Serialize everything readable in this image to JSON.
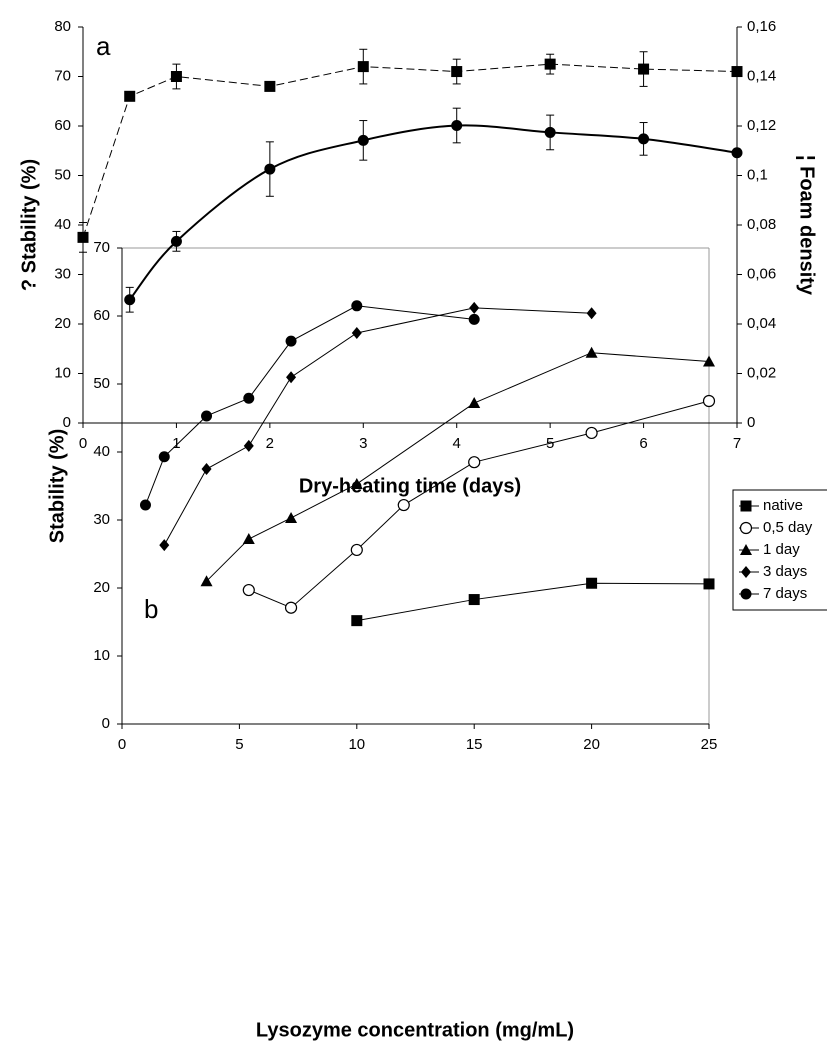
{
  "chart_data": [
    {
      "type": "line",
      "annotation": "a",
      "xlabel": "Dry-heating time (days)",
      "ylabel": "? Stability (%)",
      "y2label": "¦ Foam density",
      "x": [
        0,
        0.5,
        1,
        2,
        3,
        4,
        5,
        6,
        7
      ],
      "xlim": [
        0,
        7
      ],
      "xticks": [
        0,
        1,
        2,
        3,
        4,
        5,
        6,
        7
      ],
      "ylim": [
        0,
        80
      ],
      "yticks": [
        0,
        10,
        20,
        30,
        40,
        50,
        60,
        70,
        80
      ],
      "y2lim": [
        0,
        0.16
      ],
      "y2ticks": [
        0,
        {
          "value": 0.02,
          "label": "0,02"
        },
        {
          "value": 0.04,
          "label": "0,04"
        },
        {
          "value": 0.06,
          "label": "0,06"
        },
        {
          "value": 0.08,
          "label": "0,08"
        },
        {
          "value": 0.1,
          "label": "0,1"
        },
        {
          "value": 0.12,
          "label": "0,12"
        },
        {
          "value": 0.14,
          "label": "0,14"
        },
        {
          "value": 0.16,
          "label": "0,16"
        }
      ],
      "series": [
        {
          "color": "#000000",
          "marker": "square",
          "dash": true,
          "axis": "y2",
          "values": [
            0.075,
            0.132,
            0.14,
            0.136,
            0.144,
            0.142,
            0.145,
            0.143,
            0.142
          ],
          "errors": [
            0.006,
            null,
            0.005,
            null,
            0.007,
            0.005,
            0.004,
            0.007,
            null
          ]
        },
        {
          "color": "#000000",
          "marker": "circle",
          "smooth": true,
          "values": [
            null,
            24.9,
            36.7,
            51.3,
            57.1,
            60.1,
            58.7,
            57.4,
            54.6
          ],
          "errors": [
            null,
            2.5,
            2,
            5.5,
            4,
            3.5,
            3.5,
            3.3,
            null
          ]
        }
      ]
    },
    {
      "type": "line",
      "annotation": "b",
      "xlabel": "Lysozyme concentration (mg/mL)",
      "ylabel": "Stability (%)",
      "xlim": [
        0,
        25
      ],
      "xticks": [
        0,
        5,
        10,
        15,
        20,
        25
      ],
      "ylim": [
        0,
        70
      ],
      "yticks": [
        0,
        10,
        20,
        30,
        40,
        50,
        60,
        70
      ],
      "legend": "right",
      "series": [
        {
          "name": "native",
          "color": "#000000",
          "marker": "square",
          "x": [
            10,
            15,
            20,
            25
          ],
          "values": [
            15.2,
            18.3,
            20.7,
            20.6
          ]
        },
        {
          "name": "0,5 day",
          "color": "#000000",
          "marker": "circle-open",
          "x": [
            5.4,
            7.2,
            10,
            12,
            15,
            20,
            25
          ],
          "values": [
            19.7,
            17.1,
            25.6,
            32.2,
            38.5,
            42.8,
            47.5
          ]
        },
        {
          "name": "1 day",
          "color": "#000000",
          "marker": "triangle",
          "x": [
            3.6,
            5.4,
            7.2,
            10,
            15,
            20,
            25
          ],
          "values": [
            21,
            27.2,
            30.3,
            35.3,
            47.2,
            54.6,
            53.3
          ]
        },
        {
          "name": "3 days",
          "color": "#000000",
          "marker": "diamond",
          "x": [
            1.8,
            3.6,
            5.4,
            7.2,
            10,
            15,
            20
          ],
          "values": [
            26.3,
            37.5,
            40.9,
            51,
            57.5,
            61.2,
            60.4
          ]
        },
        {
          "name": "7 days",
          "color": "#000000",
          "marker": "circle",
          "x": [
            1,
            1.8,
            3.6,
            5.4,
            7.2,
            10,
            15
          ],
          "values": [
            32.2,
            39.3,
            45.3,
            47.9,
            56.3,
            61.5,
            59.5
          ]
        }
      ]
    }
  ]
}
